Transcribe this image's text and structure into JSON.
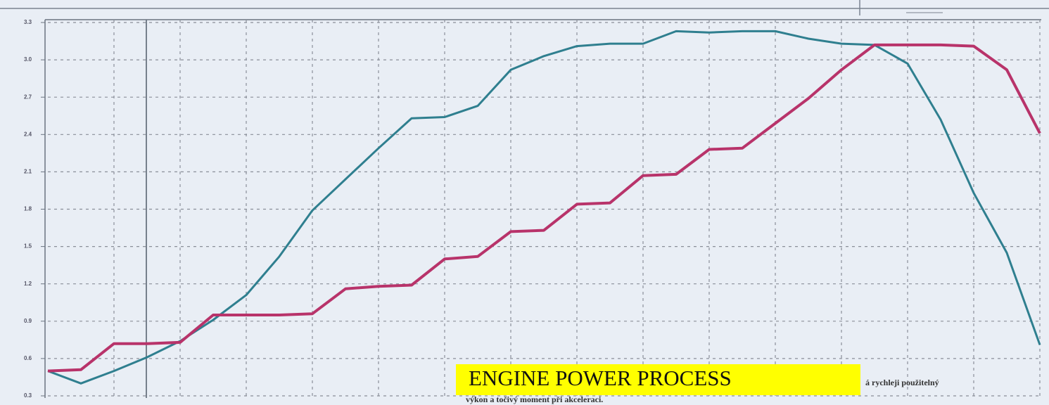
{
  "chart_data": {
    "type": "line",
    "annotations": [
      "ENGINE  POWER  PROCESS",
      "á rychleji použitelný",
      "výkon a točivý moment při akceleraci."
    ],
    "categories": [
      null,
      null,
      null,
      null,
      null,
      null,
      null,
      null,
      null,
      null,
      null,
      null,
      null,
      null,
      null,
      null,
      null,
      null,
      null,
      null,
      null,
      null,
      null,
      null,
      null,
      null,
      null,
      null,
      null,
      null,
      null
    ],
    "series": [
      {
        "color": "#2f7f8f",
        "values": [
          0.5,
          0.4,
          0.5,
          0.61,
          0.74,
          0.91,
          1.11,
          1.42,
          1.79,
          2.04,
          2.29,
          2.53,
          2.54,
          2.63,
          2.92,
          3.03,
          3.11,
          3.13,
          3.13,
          3.23,
          3.22,
          3.23,
          3.23,
          3.17,
          3.13,
          3.12,
          2.97,
          2.52,
          1.93,
          1.45,
          0.71
        ]
      },
      {
        "color": "#b8336a",
        "values": [
          0.5,
          0.51,
          0.72,
          0.72,
          0.73,
          0.95,
          0.95,
          0.95,
          0.96,
          1.16,
          1.18,
          1.19,
          1.4,
          1.42,
          1.62,
          1.63,
          1.84,
          1.85,
          2.07,
          2.08,
          2.28,
          2.29,
          2.49,
          2.69,
          2.92,
          3.12,
          3.12,
          3.12,
          3.11,
          2.92,
          2.41
        ]
      }
    ],
    "ylim": [
      0.3,
      3.3
    ],
    "yticks": [
      0.3,
      0.6,
      0.9,
      1.2,
      1.5,
      1.8,
      2.1,
      2.4,
      2.7,
      {
        "value": 3,
        "label": "3.0"
      },
      3.3
    ],
    "grid": true
  }
}
